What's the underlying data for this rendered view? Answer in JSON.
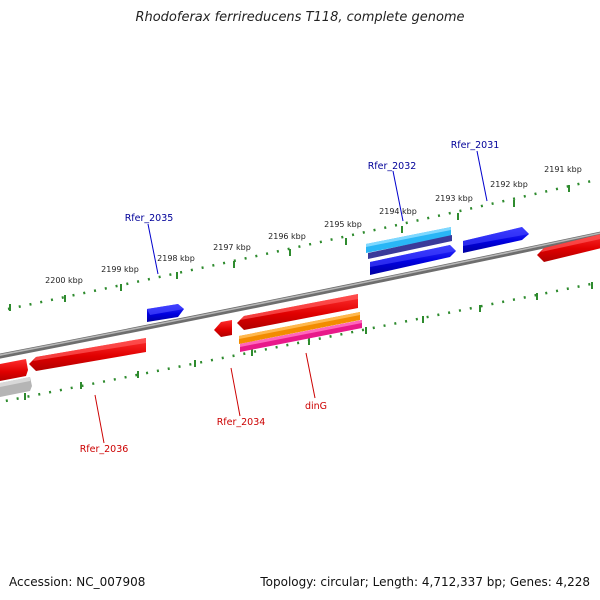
{
  "title": "Rhodoferax ferrireducens T118, complete genome",
  "accession": "Accession: NC_007908",
  "summary": "Topology: circular; Length: 4,712,337 bp; Genes: 4,228",
  "colors": {
    "backbone": "#808080",
    "upper_scale": "#2e8b2e",
    "lower_scale": "#2e8b2e",
    "forward_gene": "#0000e6",
    "reverse_gene": "#ee0000",
    "forward_label": "#000099",
    "reverse_label": "#cc0000"
  },
  "scale_labels": [
    "2200 kbp",
    "2199 kbp",
    "2198 kbp",
    "2197 kbp",
    "2196 kbp",
    "2195 kbp",
    "2194 kbp",
    "2193 kbp",
    "2192 kbp",
    "2191 kbp"
  ],
  "gene_labels": {
    "Rfer_2031": "Rfer_2031",
    "Rfer_2032": "Rfer_2032",
    "Rfer_2035": "Rfer_2035",
    "Rfer_2036": "Rfer_2036",
    "Rfer_2034": "Rfer_2034",
    "dinG": "dinG"
  }
}
